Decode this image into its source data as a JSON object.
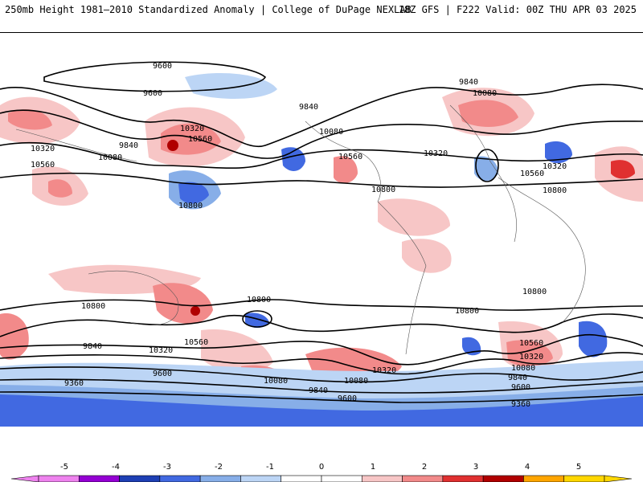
{
  "header": {
    "title": "250mb Height 1981–2010 Standardized Anomaly | College of DuPage NEXLAB",
    "run": "18Z GFS | F222 Valid: 00Z THU APR 03 2025"
  },
  "contour_labels": [
    "9600",
    "9600",
    "9840",
    "10080",
    "10320",
    "10560",
    "10800",
    "9840",
    "10080",
    "10320",
    "10560",
    "10800",
    "10320",
    "10560",
    "10800",
    "9840",
    "10080",
    "10320",
    "10560",
    "10800",
    "10800",
    "10560",
    "10320",
    "9840",
    "9600",
    "9360",
    "10080",
    "10080",
    "10320",
    "9840",
    "9600",
    "10800",
    "10800",
    "10560",
    "10320",
    "10080",
    "9840",
    "9600",
    "9360"
  ],
  "legend": {
    "ticks": [
      "-5",
      "-4",
      "-3",
      "-2",
      "-1",
      "0",
      "1",
      "2",
      "3",
      "4",
      "5"
    ],
    "colors": [
      "#ee82ee",
      "#9400d3",
      "#1e3fb4",
      "#4169e1",
      "#87aee8",
      "#bcd5f5",
      "#ffffff",
      "#ffffff",
      "#f7c6c6",
      "#f28a8a",
      "#e03030",
      "#b00000",
      "#ffa500",
      "#ffd700"
    ]
  }
}
